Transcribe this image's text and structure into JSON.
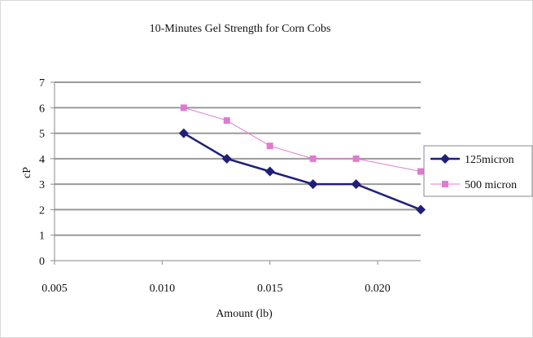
{
  "chart_data": {
    "type": "line",
    "title": "10-Minutes Gel Strength for Corn Cobs",
    "xlabel": "Amount (lb)",
    "ylabel": "cP",
    "xlim": [
      0.005,
      0.022
    ],
    "ylim": [
      0,
      7
    ],
    "x_ticks": [
      "0.005",
      "0.010",
      "0.015",
      "0.020"
    ],
    "x_tick_values": [
      0.005,
      0.01,
      0.015,
      0.02
    ],
    "y_ticks": [
      "0",
      "1",
      "2",
      "3",
      "4",
      "5",
      "6",
      "7"
    ],
    "y_tick_values": [
      0,
      1,
      2,
      3,
      4,
      5,
      6,
      7
    ],
    "grid": "horizontal",
    "legend_position": "right",
    "series": [
      {
        "name": "125micron",
        "color": "#1f1f7a",
        "marker": "diamond",
        "x": [
          0.011,
          0.013,
          0.015,
          0.017,
          0.019,
          0.022
        ],
        "values": [
          5,
          4,
          3.5,
          3,
          3,
          2
        ]
      },
      {
        "name": "500 micron",
        "color": "#e07ad0",
        "marker": "square",
        "x": [
          0.011,
          0.013,
          0.015,
          0.017,
          0.019,
          0.022
        ],
        "values": [
          6,
          5.5,
          4.5,
          4,
          4,
          3.5
        ]
      }
    ]
  }
}
